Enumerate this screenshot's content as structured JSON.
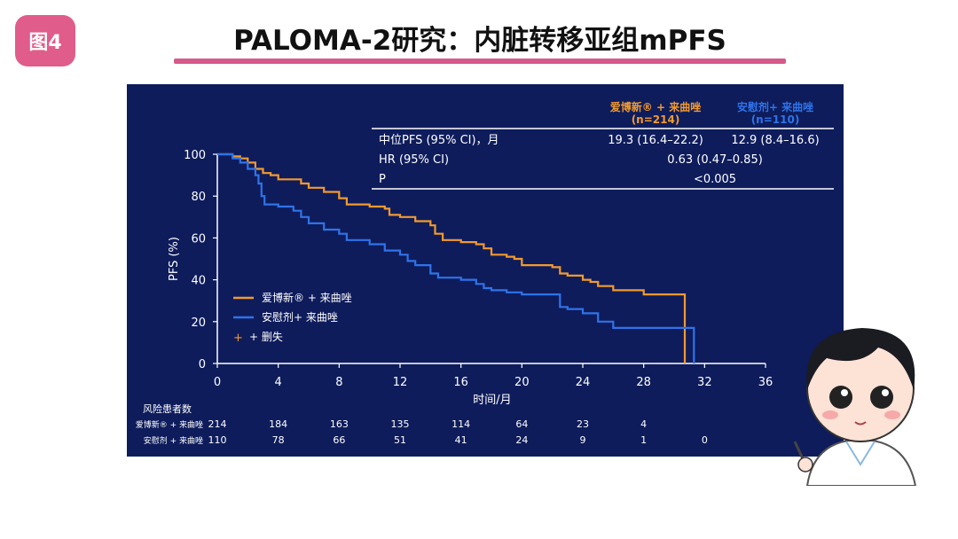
{
  "badge": "图4",
  "title": "PALOMA-2研究：内脏转移亚组mPFS",
  "colors": {
    "palbo": "#f29a2e",
    "placebo": "#2f73e8",
    "panel_bg": "#0e1c5c",
    "title_underline": "#d55a8b"
  },
  "table": {
    "col1_header_line1": "爱博新® + 来曲唑",
    "col1_header_line2": "(n=214)",
    "col2_header_line1": "安慰剂+ 来曲唑",
    "col2_header_line2": "(n=110)",
    "rows": [
      {
        "label": "中位PFS (95% CI)，月",
        "v1": "19.3 (16.4–22.2)",
        "v2": "12.9 (8.4–16.6)"
      },
      {
        "label": "HR (95% CI)",
        "merged": "0.63 (0.47–0.85)"
      },
      {
        "label": "P",
        "merged": "<0.005"
      }
    ]
  },
  "chart_data": {
    "type": "line",
    "ylabel": "PFS (%)",
    "xlabel": "时间/月",
    "xlim": [
      0,
      36
    ],
    "ylim": [
      0,
      100
    ],
    "xticks": [
      0,
      4,
      8,
      12,
      16,
      20,
      24,
      28,
      32,
      36
    ],
    "yticks": [
      0,
      20,
      40,
      60,
      80,
      100
    ],
    "legend": [
      "爱博新® + 来曲唑",
      "安慰剂+ 来曲唑",
      "+ 删失"
    ],
    "series": [
      {
        "name": "爱博新® + 来曲唑",
        "color": "#f29a2e",
        "x": [
          0,
          0.5,
          1,
          1.5,
          2,
          2.5,
          3,
          3.5,
          4,
          5,
          5.5,
          6,
          7,
          8,
          8.5,
          10,
          11,
          11.3,
          12,
          13,
          14,
          14.3,
          14.8,
          16,
          17,
          17.5,
          18,
          19,
          19.5,
          20,
          21,
          22,
          22.5,
          23,
          24,
          24.5,
          25,
          26,
          28,
          30,
          30.7,
          30.7
        ],
        "y": [
          100,
          100,
          99,
          98,
          96,
          93,
          91,
          90,
          88,
          88,
          86,
          84,
          82,
          79,
          76,
          75,
          74,
          71,
          70,
          68,
          66,
          62,
          59,
          58,
          57,
          55,
          52,
          51,
          50,
          47,
          47,
          46,
          43,
          42,
          40,
          39,
          37,
          35,
          33,
          33,
          33,
          0
        ]
      },
      {
        "name": "安慰剂+ 来曲唑",
        "color": "#2f73e8",
        "x": [
          0,
          0.5,
          1,
          1.5,
          2,
          2.5,
          2.7,
          2.9,
          3.1,
          4,
          5,
          5.5,
          6,
          7,
          8,
          8.5,
          10,
          11,
          12,
          12.5,
          13,
          14,
          14.5,
          16,
          17,
          17.5,
          18,
          19,
          20,
          22,
          22.5,
          23,
          24,
          25,
          26,
          28,
          30,
          31.3,
          31.3
        ],
        "y": [
          100,
          100,
          98,
          96,
          93,
          90,
          86,
          80,
          76,
          75,
          73,
          70,
          67,
          64,
          62,
          59,
          57,
          54,
          52,
          49,
          47,
          43,
          41,
          40,
          38,
          36,
          35,
          34,
          33,
          33,
          27,
          26,
          24,
          20,
          17,
          17,
          17,
          17,
          0
        ]
      }
    ],
    "risk_table": {
      "title": "风险患者数",
      "x": [
        0,
        4,
        8,
        12,
        16,
        20,
        24,
        28,
        32
      ],
      "rows": [
        {
          "label": "爱博新® + 来曲唑",
          "values": [
            "214",
            "184",
            "163",
            "135",
            "114",
            "64",
            "23",
            "4",
            ""
          ]
        },
        {
          "label": "安慰剂 + 来曲唑",
          "values": [
            "110",
            "78",
            "66",
            "51",
            "41",
            "24",
            "9",
            "1",
            "0"
          ]
        }
      ]
    }
  }
}
